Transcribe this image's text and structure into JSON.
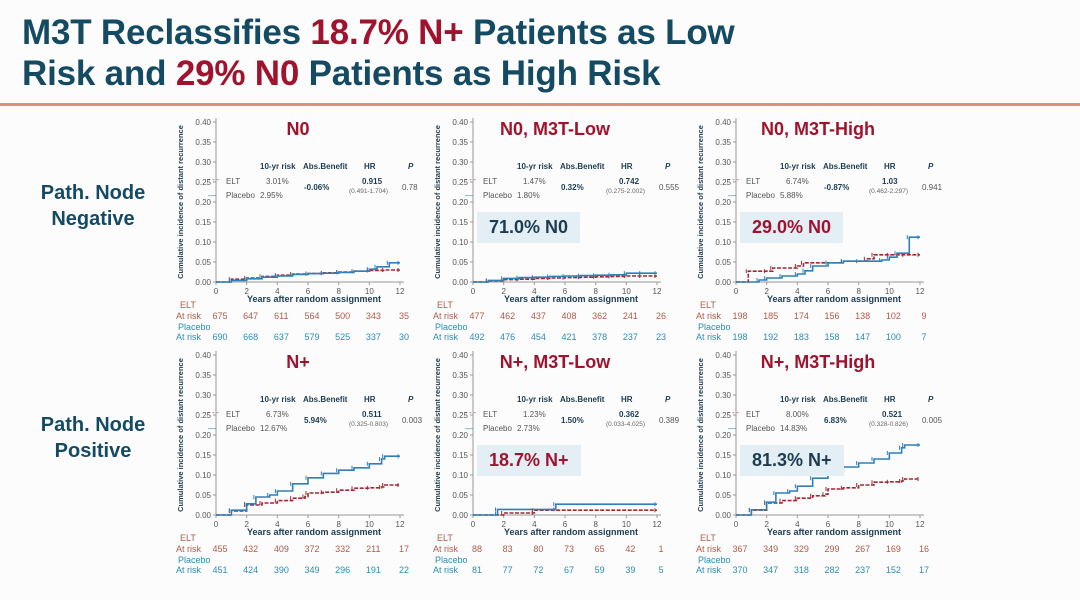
{
  "header": {
    "title_parts": [
      {
        "text": "M3T Reclassifies ",
        "highlight": false
      },
      {
        "text": "18.7% N+",
        "highlight": true
      },
      {
        "text": " Patients as Low",
        "highlight": false
      },
      {
        "text": "BR",
        "highlight": false
      },
      {
        "text": "Risk and ",
        "highlight": false
      },
      {
        "text": "29% N0",
        "highlight": true
      },
      {
        "text": " Patients as High Risk",
        "highlight": false
      }
    ]
  },
  "row_labels": {
    "negative_line1": "Path. Node",
    "negative_line2": "Negative",
    "positive_line1": "Path. Node",
    "positive_line2": "Positive"
  },
  "colors": {
    "title": "#154a63",
    "highlight": "#a0132e",
    "elt": "#a02a35",
    "placebo": "#2f7fb8",
    "rule": "#e09070",
    "callout_bg": "#e3eff5"
  },
  "common": {
    "stat_headers": [
      "10-yr risk",
      "Abs.Benefit",
      "HR",
      "P"
    ],
    "elt_label": "ELT",
    "placebo_label": "Placebo",
    "at_risk_label": "At risk",
    "xlabel": "Years after random assignment",
    "ylabel": "Cumulative incidence of distant recurrence"
  },
  "chart_data": [
    {
      "type": "line",
      "title": "N0",
      "xlabel": "Years after random assignment",
      "ylabel": "Cumulative incidence of distant recurrence",
      "xlim": [
        0,
        12
      ],
      "ylim": [
        0,
        0.4
      ],
      "xticks": [
        0,
        2,
        4,
        6,
        8,
        10,
        12
      ],
      "yticks": [
        "0.00",
        "0.05",
        "0.10",
        "0.15",
        "0.20",
        "0.25",
        "0.30",
        "0.35",
        "0.40"
      ],
      "legend": "top-left",
      "stats": {
        "elt_risk": "3.01%",
        "placebo_risk": "2.95%",
        "abs_benefit": "-0.06%",
        "hr": "0.915",
        "hr_ci": "(0.491-1.704)",
        "p": "0.78"
      },
      "callout": null,
      "series": [
        {
          "name": "ELT",
          "x": [
            0,
            1,
            2,
            3,
            4,
            5,
            6,
            7,
            8,
            9,
            10,
            11,
            12
          ],
          "y": [
            0,
            0.007,
            0.01,
            0.014,
            0.017,
            0.02,
            0.021,
            0.023,
            0.025,
            0.027,
            0.029,
            0.03,
            0.03
          ]
        },
        {
          "name": "Placebo",
          "x": [
            0,
            1,
            2,
            3,
            4,
            5,
            6,
            7,
            8,
            9,
            10,
            10.5,
            11.3,
            12
          ],
          "y": [
            0,
            0.004,
            0.008,
            0.012,
            0.015,
            0.019,
            0.021,
            0.022,
            0.024,
            0.027,
            0.032,
            0.038,
            0.048,
            0.048
          ]
        }
      ],
      "at_risk": {
        "elt": [
          675,
          647,
          611,
          564,
          500,
          343,
          35
        ],
        "placebo": [
          690,
          668,
          637,
          579,
          525,
          337,
          30
        ]
      }
    },
    {
      "type": "line",
      "title": "N0, M3T-Low",
      "xlabel": "Years after random assignment",
      "ylabel": "Cumulative incidence of distant recurrence",
      "xlim": [
        0,
        12
      ],
      "ylim": [
        0,
        0.4
      ],
      "xticks": [
        0,
        2,
        4,
        6,
        8,
        10,
        12
      ],
      "yticks": [
        "0.00",
        "0.05",
        "0.10",
        "0.15",
        "0.20",
        "0.25",
        "0.30",
        "0.35",
        "0.40"
      ],
      "legend": "top-left",
      "stats": {
        "elt_risk": "1.47%",
        "placebo_risk": "1.80%",
        "abs_benefit": "0.32%",
        "hr": "0.742",
        "hr_ci": "(0.275-2.002)",
        "p": "0.555"
      },
      "callout": {
        "text": "71.0% N0",
        "color": "dark"
      },
      "series": [
        {
          "name": "ELT",
          "x": [
            0,
            1,
            2,
            3,
            4,
            5,
            6,
            7,
            8,
            9,
            10,
            11,
            12
          ],
          "y": [
            0,
            0.003,
            0.006,
            0.007,
            0.009,
            0.01,
            0.011,
            0.012,
            0.013,
            0.014,
            0.015,
            0.015,
            0.015
          ]
        },
        {
          "name": "Placebo",
          "x": [
            0,
            1,
            2,
            3,
            4,
            5,
            6,
            7,
            8,
            9,
            10,
            11,
            12
          ],
          "y": [
            0,
            0.004,
            0.009,
            0.011,
            0.012,
            0.014,
            0.015,
            0.016,
            0.017,
            0.018,
            0.022,
            0.022,
            0.022
          ]
        }
      ],
      "at_risk": {
        "elt": [
          477,
          462,
          437,
          408,
          362,
          241,
          26
        ],
        "placebo": [
          492,
          476,
          454,
          421,
          378,
          237,
          23
        ]
      }
    },
    {
      "type": "line",
      "title": "N0, M3T-High",
      "xlabel": "Years after random assignment",
      "ylabel": "Cumulative incidence of distant recurrence",
      "xlim": [
        0,
        12
      ],
      "ylim": [
        0,
        0.4
      ],
      "xticks": [
        0,
        2,
        4,
        6,
        8,
        10,
        12
      ],
      "yticks": [
        "0.00",
        "0.05",
        "0.10",
        "0.15",
        "0.20",
        "0.25",
        "0.30",
        "0.35",
        "0.40"
      ],
      "legend": "top-left",
      "stats": {
        "elt_risk": "6.74%",
        "placebo_risk": "5.88%",
        "abs_benefit": "-0.87%",
        "hr": "1.03",
        "hr_ci": "(0.462-2.297)",
        "p": "0.941"
      },
      "callout": {
        "text": "29.0% N0",
        "color": "red"
      },
      "series": [
        {
          "name": "ELT",
          "x": [
            0,
            0.8,
            2,
            2.4,
            4,
            4.4,
            6,
            7,
            8.5,
            9,
            10,
            11,
            12
          ],
          "y": [
            0,
            0.027,
            0.027,
            0.035,
            0.04,
            0.048,
            0.048,
            0.052,
            0.058,
            0.068,
            0.068,
            0.068,
            0.068
          ]
        },
        {
          "name": "Placebo",
          "x": [
            0,
            1.5,
            2,
            3,
            4,
            4.5,
            5,
            6,
            7,
            8,
            9.5,
            10,
            10.5,
            11.3,
            12
          ],
          "y": [
            0,
            0.005,
            0.01,
            0.015,
            0.02,
            0.028,
            0.04,
            0.048,
            0.052,
            0.052,
            0.055,
            0.062,
            0.072,
            0.112,
            0.112
          ]
        }
      ],
      "at_risk": {
        "elt": [
          198,
          185,
          174,
          156,
          138,
          102,
          9
        ],
        "placebo": [
          198,
          192,
          183,
          158,
          147,
          100,
          7
        ]
      }
    },
    {
      "type": "line",
      "title": "N+",
      "xlabel": "Years after random assignment",
      "ylabel": "Cumulative incidence of distant recurrence",
      "xlim": [
        0,
        12
      ],
      "ylim": [
        0,
        0.4
      ],
      "xticks": [
        0,
        2,
        4,
        6,
        8,
        10,
        12
      ],
      "yticks": [
        "0.00",
        "0.05",
        "0.10",
        "0.15",
        "0.20",
        "0.25",
        "0.30",
        "0.35",
        "0.40"
      ],
      "legend": "top-left",
      "stats": {
        "elt_risk": "6.73%",
        "placebo_risk": "12.67%",
        "abs_benefit": "5.94%",
        "hr": "0.511",
        "hr_ci": "(0.325-0.803)",
        "p": "0.003"
      },
      "callout": null,
      "series": [
        {
          "name": "ELT",
          "x": [
            0,
            1,
            2,
            3,
            4,
            5,
            5.8,
            6,
            7,
            8,
            9,
            10,
            10.8,
            11,
            12
          ],
          "y": [
            0,
            0.01,
            0.025,
            0.03,
            0.036,
            0.042,
            0.046,
            0.055,
            0.057,
            0.062,
            0.067,
            0.068,
            0.07,
            0.075,
            0.075
          ]
        },
        {
          "name": "Placebo",
          "x": [
            0,
            1,
            2,
            2.6,
            3.5,
            4,
            5,
            6,
            7,
            8,
            9,
            10,
            10.8,
            11,
            12
          ],
          "y": [
            0,
            0.012,
            0.028,
            0.045,
            0.05,
            0.06,
            0.078,
            0.093,
            0.104,
            0.112,
            0.118,
            0.128,
            0.14,
            0.147,
            0.147
          ]
        }
      ],
      "at_risk": {
        "elt": [
          455,
          432,
          409,
          372,
          332,
          211,
          17
        ],
        "placebo": [
          451,
          424,
          390,
          349,
          296,
          191,
          22
        ]
      }
    },
    {
      "type": "line",
      "title": "N+, M3T-Low",
      "xlabel": "Years after random assignment",
      "ylabel": "Cumulative incidence of distant recurrence",
      "xlim": [
        0,
        12
      ],
      "ylim": [
        0,
        0.4
      ],
      "xticks": [
        0,
        2,
        4,
        6,
        8,
        10,
        12
      ],
      "yticks": [
        "0.00",
        "0.05",
        "0.10",
        "0.15",
        "0.20",
        "0.25",
        "0.30",
        "0.35",
        "0.40"
      ],
      "legend": "top-left",
      "stats": {
        "elt_risk": "1.23%",
        "placebo_risk": "2.73%",
        "abs_benefit": "1.50%",
        "hr": "0.362",
        "hr_ci": "(0.033-4.025)",
        "p": "0.389"
      },
      "callout": {
        "text": "18.7% N+",
        "color": "red"
      },
      "series": [
        {
          "name": "ELT",
          "x": [
            0,
            2,
            4,
            4,
            12
          ],
          "y": [
            0,
            0.005,
            0.005,
            0.012,
            0.012
          ]
        },
        {
          "name": "Placebo",
          "x": [
            0,
            1.6,
            1.6,
            5.4,
            5.4,
            12
          ],
          "y": [
            0,
            0.003,
            0.014,
            0.014,
            0.027,
            0.027
          ]
        }
      ],
      "at_risk": {
        "elt": [
          88,
          83,
          80,
          73,
          65,
          42,
          1
        ],
        "placebo": [
          81,
          77,
          72,
          67,
          59,
          39,
          5
        ]
      }
    },
    {
      "type": "line",
      "title": "N+, M3T-High",
      "xlabel": "Years after random assignment",
      "ylabel": "Cumulative incidence of distant recurrence",
      "xlim": [
        0,
        12
      ],
      "ylim": [
        0,
        0.4
      ],
      "xticks": [
        0,
        2,
        4,
        6,
        8,
        10,
        12
      ],
      "yticks": [
        "0.00",
        "0.05",
        "0.10",
        "0.15",
        "0.20",
        "0.25",
        "0.30",
        "0.35",
        "0.40"
      ],
      "legend": "top-left",
      "stats": {
        "elt_risk": "8.00%",
        "placebo_risk": "14.83%",
        "abs_benefit": "6.83%",
        "hr": "0.521",
        "hr_ci": "(0.328-0.826)",
        "p": "0.005"
      },
      "callout": {
        "text": "81.3% N+",
        "color": "dark"
      },
      "series": [
        {
          "name": "ELT",
          "x": [
            0,
            1,
            2,
            3,
            4,
            5,
            5.8,
            6,
            7,
            8,
            9,
            10,
            10.8,
            11,
            12
          ],
          "y": [
            0,
            0.012,
            0.03,
            0.036,
            0.042,
            0.048,
            0.052,
            0.065,
            0.068,
            0.075,
            0.082,
            0.083,
            0.085,
            0.09,
            0.09
          ]
        },
        {
          "name": "Placebo",
          "x": [
            0,
            1,
            2,
            2.6,
            3.5,
            4,
            5,
            6,
            7,
            8,
            9,
            10,
            10.8,
            11,
            12
          ],
          "y": [
            0,
            0.013,
            0.032,
            0.055,
            0.06,
            0.072,
            0.092,
            0.108,
            0.12,
            0.13,
            0.14,
            0.155,
            0.168,
            0.175,
            0.175
          ]
        }
      ],
      "at_risk": {
        "elt": [
          367,
          349,
          329,
          299,
          267,
          169,
          16
        ],
        "placebo": [
          370,
          347,
          318,
          282,
          237,
          152,
          17
        ]
      }
    }
  ]
}
